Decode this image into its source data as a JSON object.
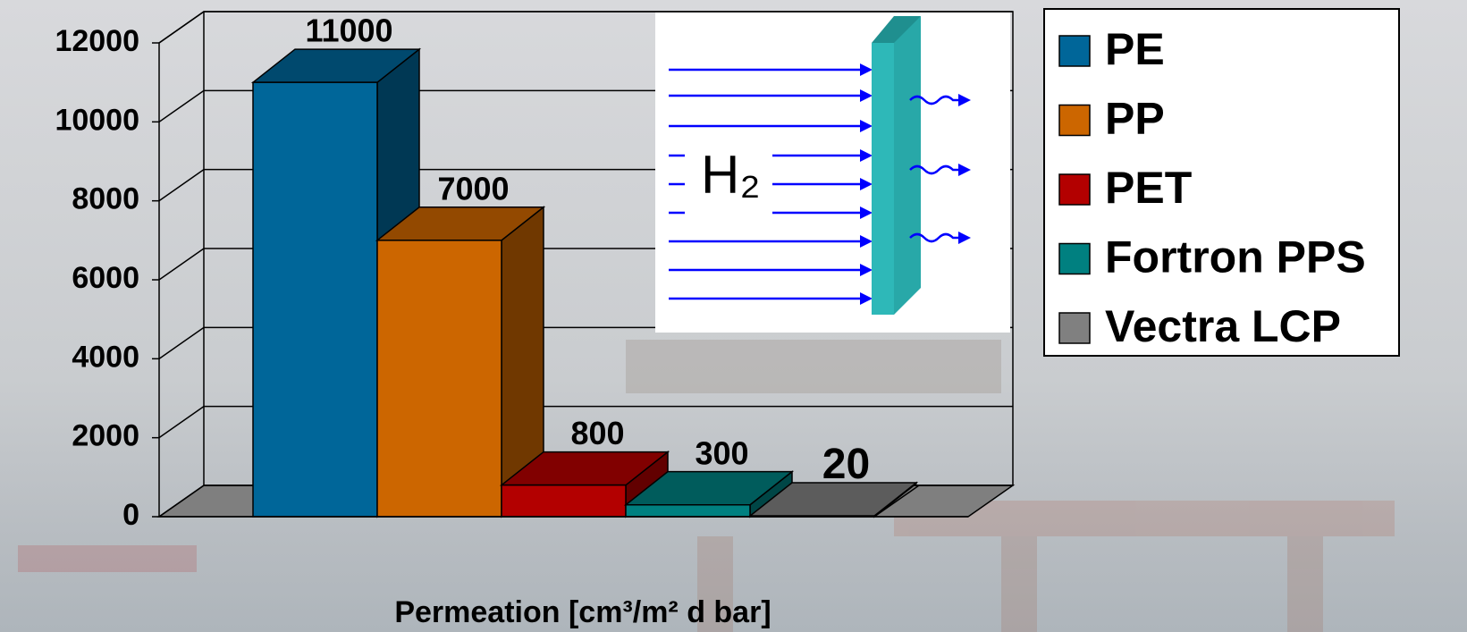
{
  "chart_data": {
    "type": "bar",
    "x_label": "Permeation [cm³/m² d bar]",
    "annotation": "H₂",
    "ylim": [
      0,
      12000
    ],
    "yticks": [
      0,
      2000,
      4000,
      6000,
      8000,
      10000,
      12000
    ],
    "grid": true,
    "legend": "right",
    "series": [
      {
        "name": "PE",
        "color": "#006699",
        "values": [
          11000
        ]
      },
      {
        "name": "PP",
        "color": "#cc6600",
        "values": [
          7000
        ]
      },
      {
        "name": "PET",
        "color": "#b30000",
        "values": [
          800
        ]
      },
      {
        "name": "Fortron PPS",
        "color": "#008080",
        "values": [
          300
        ]
      },
      {
        "name": "Vectra LCP",
        "color": "#808080",
        "values": [
          20
        ]
      }
    ]
  }
}
